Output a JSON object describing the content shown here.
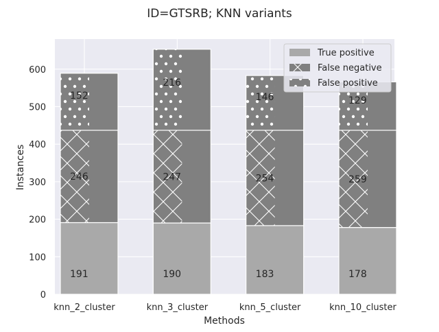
{
  "chart_data": {
    "type": "bar",
    "stacked": true,
    "title": "ID=GTSRB; KNN variants",
    "xlabel": "Methods",
    "ylabel": "Instances",
    "ylim": [
      0,
      680
    ],
    "yticks": [
      0,
      100,
      200,
      300,
      400,
      500,
      600
    ],
    "grid": true,
    "legend_position": "top-right",
    "categories": [
      "knn_2_cluster",
      "knn_3_cluster",
      "knn_5_cluster",
      "knn_10_cluster"
    ],
    "series": [
      {
        "name": "True positive",
        "values": [
          191,
          190,
          183,
          178
        ],
        "color": "#a9a9a9",
        "pattern": "none"
      },
      {
        "name": "False negative",
        "values": [
          246,
          247,
          254,
          259
        ],
        "color": "#808080",
        "pattern": "crosshatch"
      },
      {
        "name": "False positive",
        "values": [
          152,
          216,
          146,
          129
        ],
        "color": "#808080",
        "pattern": "dots"
      }
    ],
    "colors": {
      "background": "#eaeaf2",
      "grid": "#ffffff",
      "text": "#262626"
    }
  }
}
